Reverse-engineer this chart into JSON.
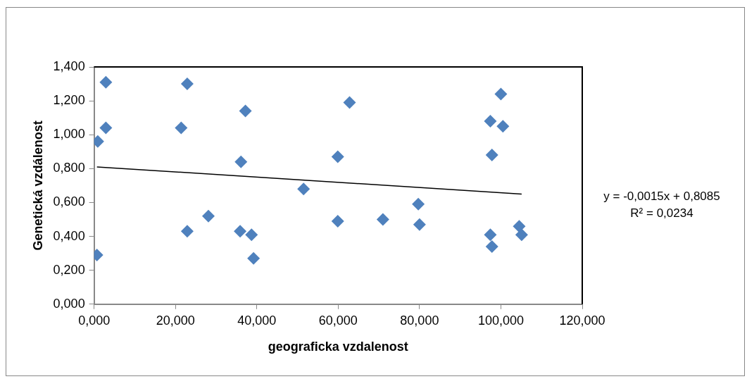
{
  "chart_data": {
    "type": "scatter",
    "xlabel": "geograficka vzdalenost",
    "ylabel": "Genetická vzdálenost",
    "xlim": [
      0,
      120
    ],
    "ylim": [
      0,
      1.4
    ],
    "xticks": [
      {
        "value": 0,
        "label": "0,000"
      },
      {
        "value": 20,
        "label": "20,000"
      },
      {
        "value": 40,
        "label": "40,000"
      },
      {
        "value": 60,
        "label": "60,000"
      },
      {
        "value": 80,
        "label": "80,000"
      },
      {
        "value": 100,
        "label": "100,000"
      },
      {
        "value": 120,
        "label": "120,000"
      }
    ],
    "yticks": [
      {
        "value": 0,
        "label": "0,000"
      },
      {
        "value": 0.2,
        "label": "0,200"
      },
      {
        "value": 0.4,
        "label": "0,400"
      },
      {
        "value": 0.6,
        "label": "0,600"
      },
      {
        "value": 0.8,
        "label": "0,800"
      },
      {
        "value": 1.0,
        "label": "1,000"
      },
      {
        "value": 1.2,
        "label": "1,200"
      },
      {
        "value": 1.4,
        "label": "1,400"
      }
    ],
    "grid": false,
    "legend": false,
    "annotations": [
      "y = -0,0015x + 0,8085",
      "R² = 0,0234"
    ],
    "series": [
      {
        "type": "scatter",
        "marker": "diamond",
        "color": "#4f81bd",
        "x": [
          0.9,
          0.7,
          2.9,
          2.9,
          21.4,
          22.9,
          22.9,
          28.1,
          36.1,
          37.2,
          35.9,
          38.7,
          39.2,
          51.5,
          59.9,
          59.9,
          62.8,
          71.0,
          79.7,
          80.0,
          97.4,
          100.0,
          100.5,
          97.8,
          97.4,
          97.8,
          104.5,
          105.1
        ],
        "values": [
          0.96,
          0.29,
          1.31,
          1.04,
          1.04,
          1.3,
          0.43,
          0.52,
          0.84,
          1.14,
          0.43,
          0.41,
          0.27,
          0.68,
          0.87,
          0.49,
          1.19,
          0.5,
          0.59,
          0.47,
          1.08,
          1.24,
          1.05,
          0.88,
          0.41,
          0.34,
          0.46,
          0.41
        ]
      },
      {
        "type": "line",
        "marker": "none",
        "color": "#000000",
        "x": [
          0.7,
          105.1
        ],
        "values": [
          0.81,
          0.65
        ]
      }
    ]
  }
}
